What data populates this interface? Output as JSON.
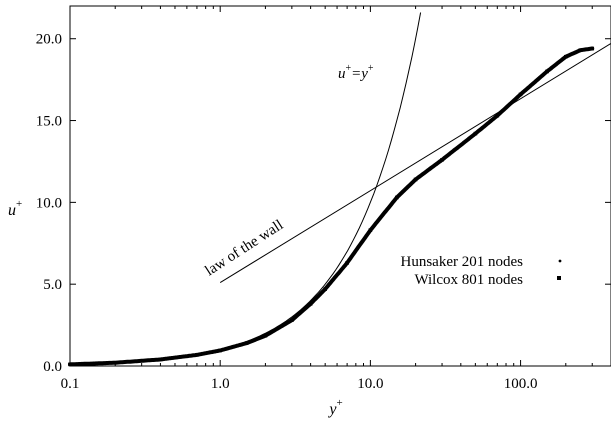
{
  "chart_data": {
    "type": "scatter",
    "xscale": "log",
    "xlim": [
      0.1,
      400
    ],
    "ylim": [
      0,
      22
    ],
    "grid": false,
    "legend_position": "right",
    "xlabel_main": "y",
    "xlabel_sup": "+",
    "ylabel_main": "u",
    "ylabel_sup": "+",
    "xticks": [
      0.1,
      1,
      10,
      100
    ],
    "xtick_labels": [
      "0.1",
      "1.0",
      "10.0",
      "100.0"
    ],
    "yticks": [
      0,
      5,
      10,
      15,
      20
    ],
    "ytick_labels": [
      "0.0",
      "5.0",
      "10.0",
      "15.0",
      "20.0"
    ],
    "annotations": {
      "viscous": {
        "main": "u",
        "sup1": "+",
        "eq": "=y",
        "sup2": "+"
      },
      "log_law": "law of the wall"
    },
    "reference_lines": [
      {
        "kind": "viscous_sublayer",
        "equation": "u+ = y+",
        "x_range": [
          0.1,
          21.6
        ]
      },
      {
        "kind": "log_law",
        "kappa": 0.41,
        "B": 5.1,
        "x_range": [
          1,
          400
        ]
      }
    ],
    "series": [
      {
        "name": "Hunsaker 201 nodes",
        "marker": "dot",
        "x": [
          0.1,
          0.2,
          0.4,
          0.7,
          1.0,
          1.5,
          2.0,
          3.0,
          4.0,
          5.0,
          7.0,
          10.0,
          15.0,
          20.0,
          30.0,
          50.0,
          70.0,
          100.0,
          150.0,
          200.0,
          250.0,
          300.0
        ],
        "y": [
          0.1,
          0.2,
          0.4,
          0.68,
          0.95,
          1.4,
          1.85,
          2.8,
          3.8,
          4.7,
          6.3,
          8.3,
          10.3,
          11.4,
          12.6,
          14.2,
          15.3,
          16.6,
          18.0,
          18.9,
          19.3,
          19.4
        ]
      },
      {
        "name": "Wilcox 801 nodes",
        "marker": "square",
        "x": [
          0.1,
          0.2,
          0.4,
          0.7,
          1.0,
          1.5,
          2.0,
          3.0,
          4.0,
          5.0,
          7.0,
          10.0,
          15.0,
          20.0,
          30.0,
          50.0,
          70.0,
          100.0,
          150.0,
          200.0,
          250.0,
          300.0
        ],
        "y": [
          0.1,
          0.2,
          0.4,
          0.68,
          0.95,
          1.4,
          1.85,
          2.8,
          3.8,
          4.7,
          6.3,
          8.3,
          10.3,
          11.4,
          12.6,
          14.2,
          15.3,
          16.6,
          18.0,
          18.9,
          19.3,
          19.4
        ]
      }
    ]
  }
}
